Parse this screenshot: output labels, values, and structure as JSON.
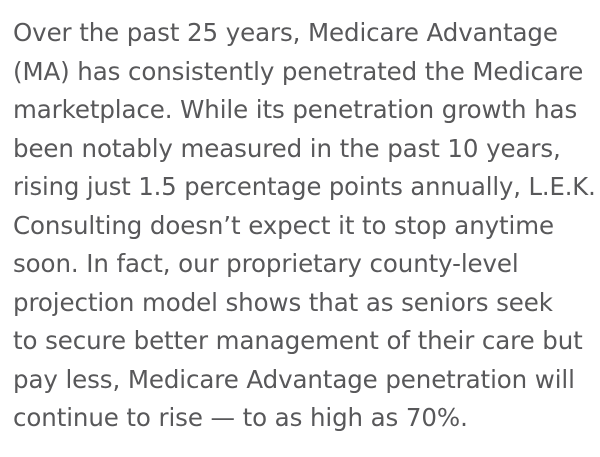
{
  "article": {
    "paragraph_lines": [
      "Over the past 25 years, Medicare Advantage",
      "(MA) has consistently penetrated the Medicare",
      "marketplace. While its penetration growth has",
      "been notably measured in the past 10 years,",
      "rising just 1.5 percentage points annually, L.E.K.",
      "Consulting doesn’t expect it to stop anytime",
      "soon. In fact, our proprietary county-level",
      "projection model shows that as seniors seek",
      "to secure better management of their care but",
      "pay less, Medicare Advantage penetration will",
      "continue to rise — to as high as 70%."
    ],
    "text_color": "#58585a",
    "background_color": "#ffffff"
  }
}
